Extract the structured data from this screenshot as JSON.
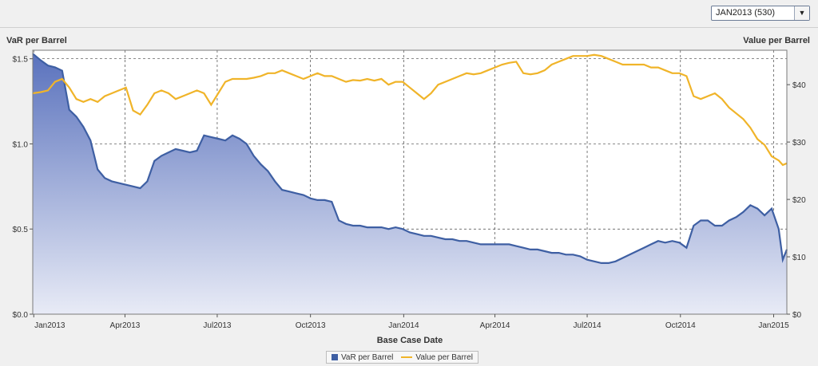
{
  "dropdown": {
    "selected": "JAN2013 (530)",
    "arrow_icon": "triangle-down-icon"
  },
  "colors": {
    "var": "#3e5fa3",
    "value": "#f0b429",
    "var_fill_top": "#5a72bd",
    "var_fill_bottom": "#e8ebf6"
  },
  "chart_data": {
    "type": "area+line",
    "xlabel": "Base Case Date",
    "ylabel_left": "VaR per Barrel",
    "ylabel_right": "Value per Barrel",
    "x_ticks": [
      "Jan2013",
      "Apr2013",
      "Jul2013",
      "Oct2013",
      "Jan2014",
      "Apr2014",
      "Jul2014",
      "Oct2014",
      "Jan2015"
    ],
    "y_left_ticks": [
      "$0.0",
      "$0.5",
      "$1.0",
      "$1.5"
    ],
    "y_right_ticks": [
      "$0",
      "$10",
      "$20",
      "$30",
      "$40"
    ],
    "y_left_range": [
      0,
      1.55
    ],
    "y_right_range": [
      0,
      46
    ],
    "x_range": [
      "2012-12-31",
      "2015-01-14"
    ],
    "grid": true,
    "legend_position": "bottom-center",
    "series": [
      {
        "name": "VaR per Barrel",
        "axis": "left",
        "style": "area",
        "points": [
          [
            "2012-12-31",
            1.53
          ],
          [
            "2013-01-08",
            1.49
          ],
          [
            "2013-01-15",
            1.46
          ],
          [
            "2013-01-22",
            1.45
          ],
          [
            "2013-01-29",
            1.43
          ],
          [
            "2013-02-05",
            1.2
          ],
          [
            "2013-02-12",
            1.16
          ],
          [
            "2013-02-19",
            1.1
          ],
          [
            "2013-02-26",
            1.02
          ],
          [
            "2013-03-05",
            0.85
          ],
          [
            "2013-03-12",
            0.8
          ],
          [
            "2013-03-19",
            0.78
          ],
          [
            "2013-03-26",
            0.77
          ],
          [
            "2013-04-02",
            0.76
          ],
          [
            "2013-04-09",
            0.75
          ],
          [
            "2013-04-16",
            0.74
          ],
          [
            "2013-04-23",
            0.78
          ],
          [
            "2013-04-30",
            0.9
          ],
          [
            "2013-05-07",
            0.93
          ],
          [
            "2013-05-14",
            0.95
          ],
          [
            "2013-05-21",
            0.97
          ],
          [
            "2013-05-28",
            0.96
          ],
          [
            "2013-06-04",
            0.95
          ],
          [
            "2013-06-11",
            0.96
          ],
          [
            "2013-06-18",
            1.05
          ],
          [
            "2013-06-25",
            1.04
          ],
          [
            "2013-07-02",
            1.03
          ],
          [
            "2013-07-09",
            1.02
          ],
          [
            "2013-07-16",
            1.05
          ],
          [
            "2013-07-23",
            1.03
          ],
          [
            "2013-07-30",
            1.0
          ],
          [
            "2013-08-06",
            0.93
          ],
          [
            "2013-08-13",
            0.88
          ],
          [
            "2013-08-20",
            0.84
          ],
          [
            "2013-08-27",
            0.78
          ],
          [
            "2013-09-03",
            0.73
          ],
          [
            "2013-09-10",
            0.72
          ],
          [
            "2013-09-17",
            0.71
          ],
          [
            "2013-09-24",
            0.7
          ],
          [
            "2013-10-01",
            0.68
          ],
          [
            "2013-10-08",
            0.67
          ],
          [
            "2013-10-15",
            0.67
          ],
          [
            "2013-10-22",
            0.66
          ],
          [
            "2013-10-29",
            0.55
          ],
          [
            "2013-11-05",
            0.53
          ],
          [
            "2013-11-12",
            0.52
          ],
          [
            "2013-11-19",
            0.52
          ],
          [
            "2013-11-26",
            0.51
          ],
          [
            "2013-12-03",
            0.51
          ],
          [
            "2013-12-10",
            0.51
          ],
          [
            "2013-12-17",
            0.5
          ],
          [
            "2013-12-24",
            0.51
          ],
          [
            "2013-12-31",
            0.5
          ],
          [
            "2014-01-07",
            0.48
          ],
          [
            "2014-01-14",
            0.47
          ],
          [
            "2014-01-21",
            0.46
          ],
          [
            "2014-01-28",
            0.46
          ],
          [
            "2014-02-04",
            0.45
          ],
          [
            "2014-02-11",
            0.44
          ],
          [
            "2014-02-18",
            0.44
          ],
          [
            "2014-02-25",
            0.43
          ],
          [
            "2014-03-04",
            0.43
          ],
          [
            "2014-03-11",
            0.42
          ],
          [
            "2014-03-18",
            0.41
          ],
          [
            "2014-03-25",
            0.41
          ],
          [
            "2014-04-01",
            0.41
          ],
          [
            "2014-04-08",
            0.41
          ],
          [
            "2014-04-15",
            0.41
          ],
          [
            "2014-04-22",
            0.4
          ],
          [
            "2014-04-29",
            0.39
          ],
          [
            "2014-05-06",
            0.38
          ],
          [
            "2014-05-13",
            0.38
          ],
          [
            "2014-05-20",
            0.37
          ],
          [
            "2014-05-27",
            0.36
          ],
          [
            "2014-06-03",
            0.36
          ],
          [
            "2014-06-10",
            0.35
          ],
          [
            "2014-06-17",
            0.35
          ],
          [
            "2014-06-24",
            0.34
          ],
          [
            "2014-07-01",
            0.32
          ],
          [
            "2014-07-08",
            0.31
          ],
          [
            "2014-07-15",
            0.3
          ],
          [
            "2014-07-22",
            0.3
          ],
          [
            "2014-07-29",
            0.31
          ],
          [
            "2014-08-05",
            0.33
          ],
          [
            "2014-08-12",
            0.35
          ],
          [
            "2014-08-19",
            0.37
          ],
          [
            "2014-08-26",
            0.39
          ],
          [
            "2014-09-02",
            0.41
          ],
          [
            "2014-09-09",
            0.43
          ],
          [
            "2014-09-16",
            0.42
          ],
          [
            "2014-09-23",
            0.43
          ],
          [
            "2014-09-30",
            0.42
          ],
          [
            "2014-10-07",
            0.39
          ],
          [
            "2014-10-14",
            0.52
          ],
          [
            "2014-10-21",
            0.55
          ],
          [
            "2014-10-28",
            0.55
          ],
          [
            "2014-11-04",
            0.52
          ],
          [
            "2014-11-11",
            0.52
          ],
          [
            "2014-11-18",
            0.55
          ],
          [
            "2014-11-25",
            0.57
          ],
          [
            "2014-12-02",
            0.6
          ],
          [
            "2014-12-09",
            0.64
          ],
          [
            "2014-12-16",
            0.62
          ],
          [
            "2014-12-23",
            0.58
          ],
          [
            "2014-12-30",
            0.62
          ],
          [
            "2015-01-06",
            0.5
          ],
          [
            "2015-01-10",
            0.32
          ],
          [
            "2015-01-14",
            0.38
          ]
        ]
      },
      {
        "name": "Value per Barrel",
        "axis": "right",
        "style": "line",
        "points": [
          [
            "2012-12-31",
            38.5
          ],
          [
            "2013-01-08",
            38.7
          ],
          [
            "2013-01-15",
            39.0
          ],
          [
            "2013-01-22",
            40.5
          ],
          [
            "2013-01-29",
            41.0
          ],
          [
            "2013-02-05",
            39.5
          ],
          [
            "2013-02-12",
            37.5
          ],
          [
            "2013-02-19",
            37.0
          ],
          [
            "2013-02-26",
            37.5
          ],
          [
            "2013-03-05",
            37.0
          ],
          [
            "2013-03-12",
            38.0
          ],
          [
            "2013-03-19",
            38.5
          ],
          [
            "2013-03-26",
            39.0
          ],
          [
            "2013-04-02",
            39.5
          ],
          [
            "2013-04-09",
            35.5
          ],
          [
            "2013-04-16",
            34.8
          ],
          [
            "2013-04-23",
            36.5
          ],
          [
            "2013-04-30",
            38.5
          ],
          [
            "2013-05-07",
            39.0
          ],
          [
            "2013-05-14",
            38.5
          ],
          [
            "2013-05-21",
            37.5
          ],
          [
            "2013-05-28",
            38.0
          ],
          [
            "2013-06-04",
            38.5
          ],
          [
            "2013-06-11",
            39.0
          ],
          [
            "2013-06-18",
            38.5
          ],
          [
            "2013-06-25",
            36.5
          ],
          [
            "2013-07-02",
            38.5
          ],
          [
            "2013-07-09",
            40.5
          ],
          [
            "2013-07-16",
            41.0
          ],
          [
            "2013-07-23",
            41.0
          ],
          [
            "2013-07-30",
            41.0
          ],
          [
            "2013-08-06",
            41.2
          ],
          [
            "2013-08-13",
            41.5
          ],
          [
            "2013-08-20",
            42.0
          ],
          [
            "2013-08-27",
            42.0
          ],
          [
            "2013-09-03",
            42.5
          ],
          [
            "2013-09-10",
            42.0
          ],
          [
            "2013-09-17",
            41.5
          ],
          [
            "2013-09-24",
            41.0
          ],
          [
            "2013-10-01",
            41.5
          ],
          [
            "2013-10-08",
            42.0
          ],
          [
            "2013-10-15",
            41.5
          ],
          [
            "2013-10-22",
            41.5
          ],
          [
            "2013-10-29",
            41.0
          ],
          [
            "2013-11-05",
            40.5
          ],
          [
            "2013-11-12",
            40.8
          ],
          [
            "2013-11-19",
            40.7
          ],
          [
            "2013-11-26",
            41.0
          ],
          [
            "2013-12-03",
            40.7
          ],
          [
            "2013-12-10",
            41.0
          ],
          [
            "2013-12-17",
            40.0
          ],
          [
            "2013-12-24",
            40.5
          ],
          [
            "2013-12-31",
            40.5
          ],
          [
            "2014-01-07",
            39.5
          ],
          [
            "2014-01-14",
            38.5
          ],
          [
            "2014-01-21",
            37.5
          ],
          [
            "2014-01-28",
            38.5
          ],
          [
            "2014-02-04",
            40.0
          ],
          [
            "2014-02-11",
            40.5
          ],
          [
            "2014-02-18",
            41.0
          ],
          [
            "2014-02-25",
            41.5
          ],
          [
            "2014-03-04",
            42.0
          ],
          [
            "2014-03-11",
            41.8
          ],
          [
            "2014-03-18",
            42.0
          ],
          [
            "2014-03-25",
            42.5
          ],
          [
            "2014-04-01",
            43.0
          ],
          [
            "2014-04-08",
            43.5
          ],
          [
            "2014-04-15",
            43.8
          ],
          [
            "2014-04-22",
            44.0
          ],
          [
            "2014-04-29",
            42.0
          ],
          [
            "2014-05-06",
            41.8
          ],
          [
            "2014-05-13",
            42.0
          ],
          [
            "2014-05-20",
            42.5
          ],
          [
            "2014-05-27",
            43.5
          ],
          [
            "2014-06-03",
            44.0
          ],
          [
            "2014-06-10",
            44.5
          ],
          [
            "2014-06-17",
            45.0
          ],
          [
            "2014-06-24",
            45.0
          ],
          [
            "2014-07-01",
            45.0
          ],
          [
            "2014-07-08",
            45.2
          ],
          [
            "2014-07-15",
            45.0
          ],
          [
            "2014-07-22",
            44.5
          ],
          [
            "2014-07-29",
            44.0
          ],
          [
            "2014-08-05",
            43.5
          ],
          [
            "2014-08-12",
            43.5
          ],
          [
            "2014-08-19",
            43.5
          ],
          [
            "2014-08-26",
            43.5
          ],
          [
            "2014-09-02",
            43.0
          ],
          [
            "2014-09-09",
            43.0
          ],
          [
            "2014-09-16",
            42.5
          ],
          [
            "2014-09-23",
            42.0
          ],
          [
            "2014-09-30",
            42.0
          ],
          [
            "2014-10-07",
            41.5
          ],
          [
            "2014-10-14",
            38.0
          ],
          [
            "2014-10-21",
            37.5
          ],
          [
            "2014-10-28",
            38.0
          ],
          [
            "2014-11-04",
            38.5
          ],
          [
            "2014-11-11",
            37.5
          ],
          [
            "2014-11-18",
            36.0
          ],
          [
            "2014-11-25",
            35.0
          ],
          [
            "2014-12-02",
            34.0
          ],
          [
            "2014-12-09",
            32.5
          ],
          [
            "2014-12-16",
            30.5
          ],
          [
            "2014-12-23",
            29.5
          ],
          [
            "2014-12-30",
            27.5
          ],
          [
            "2015-01-06",
            26.8
          ],
          [
            "2015-01-10",
            26.0
          ],
          [
            "2015-01-14",
            26.3
          ]
        ]
      }
    ]
  }
}
